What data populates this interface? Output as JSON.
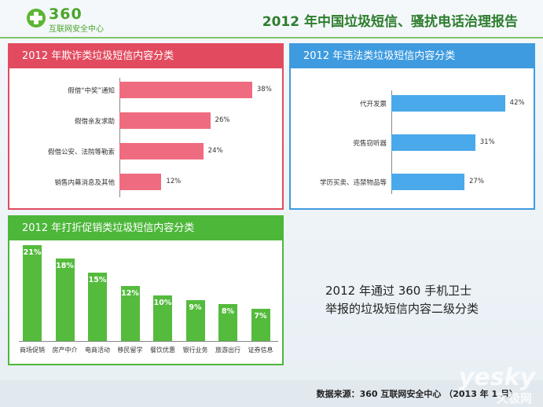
{
  "header": {
    "logo_text": "360",
    "logo_sub": "互联网安全中心",
    "title": "2012 年中国垃圾短信、骚扰电话治理报告"
  },
  "caption": {
    "line1": "2012 年通过 360 手机卫士",
    "line2": "举报的垃圾短信内容二级分类"
  },
  "footer": {
    "source": "数据来源：360 互联网安全中心 （2013 年 1 月）",
    "watermark": "yesky",
    "watermark_sub": "天极网"
  },
  "colors": {
    "red": "#e24b5f",
    "bar_red": "#ef6c80",
    "blue": "#3e9be0",
    "bar_blue": "#4aa9ea",
    "green": "#4db73a",
    "bar_green": "#54bb3d"
  },
  "chart_data": [
    {
      "type": "bar",
      "orientation": "horizontal",
      "title": "2012 年欺诈类垃圾短信内容分类",
      "categories": [
        "假借“中奖”通知",
        "假借亲友求助",
        "假借公安、法院等勒索",
        "销售内幕消息及其他"
      ],
      "values": [
        38,
        26,
        24,
        12
      ],
      "value_labels": [
        "38%",
        "26%",
        "24%",
        "12%"
      ],
      "xlim": [
        0,
        45
      ],
      "color": "#ef6c80"
    },
    {
      "type": "bar",
      "orientation": "horizontal",
      "title": "2012 年违法类垃圾短信内容分类",
      "categories": [
        "代开发票",
        "兜售窃听器",
        "学历买卖、违禁物品等"
      ],
      "values": [
        42,
        31,
        27
      ],
      "value_labels": [
        "42%",
        "31%",
        "27%"
      ],
      "xlim": [
        0,
        45
      ],
      "color": "#4aa9ea"
    },
    {
      "type": "bar",
      "orientation": "vertical",
      "title": "2012 年打折促销类垃圾短信内容分类",
      "categories": [
        "商场促销",
        "房产中介",
        "电商活动",
        "移民留学",
        "餐饮优惠",
        "银行业务",
        "旅游出行",
        "证券信息"
      ],
      "values": [
        21,
        18,
        15,
        12,
        10,
        9,
        8,
        7
      ],
      "value_labels": [
        "21%",
        "18%",
        "15%",
        "12%",
        "10%",
        "9%",
        "8%",
        "7%"
      ],
      "ylim": [
        0,
        22
      ],
      "color": "#54bb3d"
    }
  ]
}
